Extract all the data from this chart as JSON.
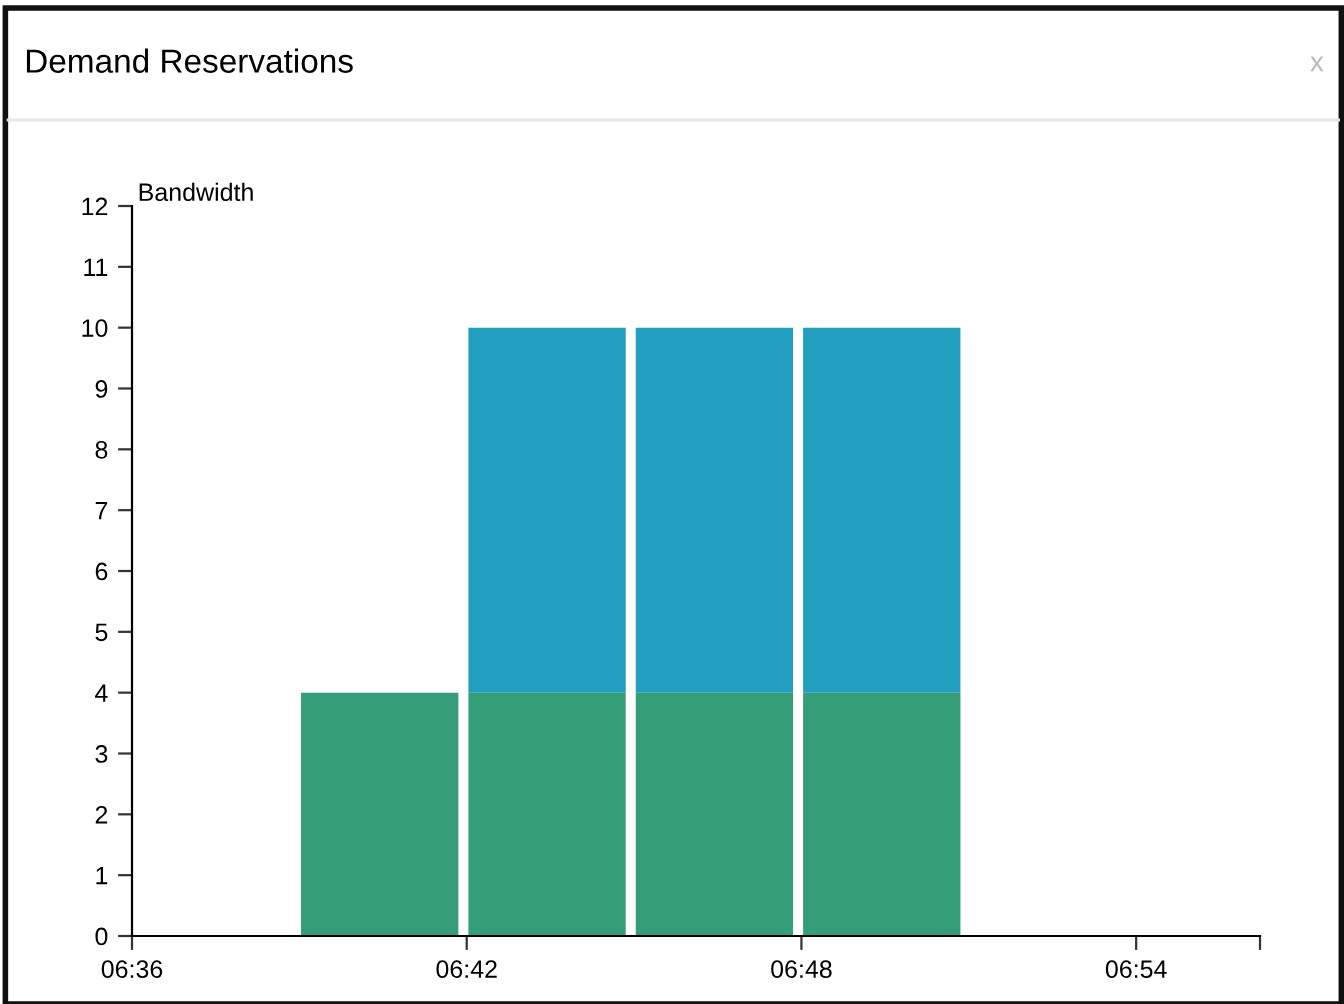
{
  "chart_data": {
    "type": "bar",
    "title": "Demand Reservations",
    "ylabel": "Bandwidth",
    "annotations": [
      "x"
    ],
    "x": [
      6.674,
      6.724,
      6.774,
      6.824
    ],
    "stacked": true,
    "series": [
      {
        "color": "#339e78",
        "values": [
          4,
          4,
          4,
          4
        ]
      },
      {
        "color": "#229fbe",
        "values": [
          null,
          6,
          6,
          6
        ]
      }
    ],
    "xlim": [
      6.6,
      6.937
    ],
    "xticks": [
      {
        "value": 6.6,
        "label": "06:36"
      },
      {
        "value": 6.7,
        "label": "06:42"
      },
      {
        "value": 6.8,
        "label": "06:48"
      },
      {
        "value": 6.9,
        "label": "06:54"
      },
      {
        "value": 6.937,
        "label": null
      }
    ],
    "ylim": [
      0,
      12
    ],
    "yticks": [
      0,
      1,
      2,
      3,
      4,
      5,
      6,
      7,
      8,
      9,
      10,
      11,
      12
    ],
    "grid": false,
    "legend": false
  }
}
